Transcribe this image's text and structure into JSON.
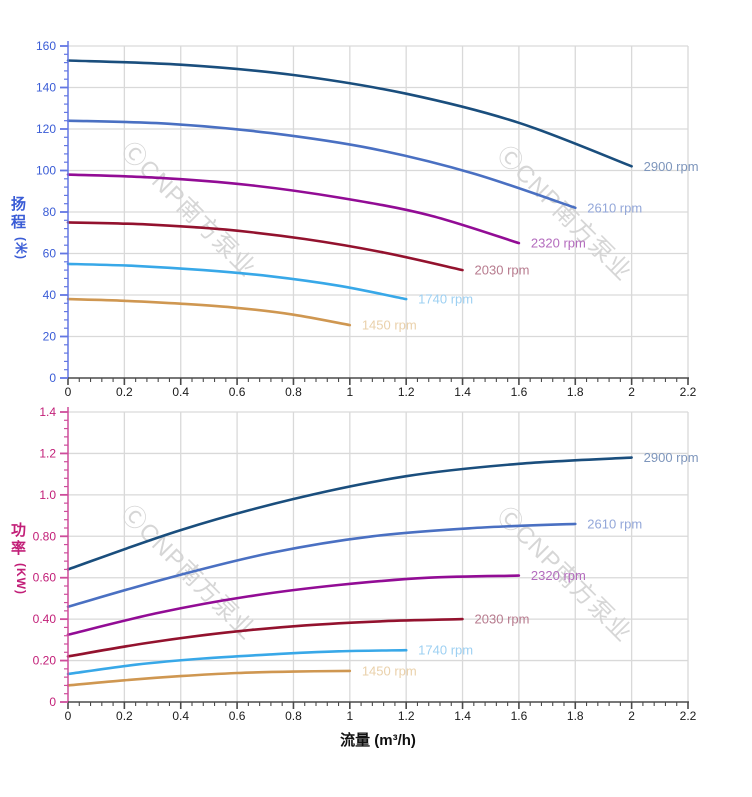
{
  "watermark": {
    "text": "ⒸCNP南方泵业",
    "color": "#D2D2D2"
  },
  "axis_titles": {
    "head_main": "扬程",
    "head_unit": "(米)",
    "power_main": "功率",
    "power_unit": "(KW)",
    "flow_title": "流量 (m³/h)"
  },
  "style": {
    "grid_color": "#D9D9D9",
    "x_axis_color": "#4A4A4A",
    "x_label_color": "#1B1B1B",
    "head_axis_color": "#3A5CD6",
    "head_tick_color": "#6377E3",
    "power_axis_color": "#C21F78",
    "power_tick_color": "#CE4D9B"
  },
  "chart_data": [
    {
      "type": "line",
      "id": "head",
      "title": "",
      "ylabel": "扬程 (米)",
      "xlabel": "",
      "xlim": [
        0,
        2.2
      ],
      "ylim": [
        0,
        160
      ],
      "x_major": 0.2,
      "x_minor": 0.04,
      "y_major": 20,
      "y_minor": 4,
      "x_tick_labels": [
        "0",
        "0.2",
        "0.4",
        "0.6",
        "0.8",
        "1",
        "1.2",
        "1.4",
        "1.6",
        "1.8",
        "2",
        "2.2"
      ],
      "y_tick_labels": [
        "0",
        "20",
        "40",
        "60",
        "80",
        "100",
        "120",
        "140",
        "160"
      ],
      "grid": true,
      "legend": "inline-end-labels",
      "series": [
        {
          "name": "2900 rpm",
          "color": "#1A4E7D",
          "label_color": "#7E96BC",
          "points": [
            [
              0,
              153
            ],
            [
              0.4,
              151
            ],
            [
              0.8,
              146
            ],
            [
              1.2,
              137
            ],
            [
              1.6,
              123
            ],
            [
              2,
              102
            ]
          ]
        },
        {
          "name": "2610 rpm",
          "color": "#4A70C2",
          "label_color": "#93A7D9",
          "points": [
            [
              0,
              124
            ],
            [
              0.36,
              122.5
            ],
            [
              0.72,
              118
            ],
            [
              1.08,
              110.5
            ],
            [
              1.44,
              98.5
            ],
            [
              1.8,
              82
            ]
          ]
        },
        {
          "name": "2320 rpm",
          "color": "#920C95",
          "label_color": "#B46CBE",
          "points": [
            [
              0,
              98
            ],
            [
              0.32,
              96.5
            ],
            [
              0.64,
              93
            ],
            [
              0.96,
              87
            ],
            [
              1.28,
              78.5
            ],
            [
              1.6,
              65
            ]
          ]
        },
        {
          "name": "2030 rpm",
          "color": "#93122E",
          "label_color": "#B77B8E",
          "points": [
            [
              0,
              75
            ],
            [
              0.28,
              74
            ],
            [
              0.56,
              71.5
            ],
            [
              0.84,
              67
            ],
            [
              1.12,
              60.5
            ],
            [
              1.4,
              52
            ]
          ]
        },
        {
          "name": "1740 rpm",
          "color": "#38A8E8",
          "label_color": "#9DD0F2",
          "points": [
            [
              0,
              55
            ],
            [
              0.24,
              54
            ],
            [
              0.48,
              52
            ],
            [
              0.72,
              49
            ],
            [
              0.96,
              44.5
            ],
            [
              1.2,
              38
            ]
          ]
        },
        {
          "name": "1450 rpm",
          "color": "#CF9751",
          "label_color": "#EAD1AB",
          "points": [
            [
              0,
              38
            ],
            [
              0.2,
              37.2
            ],
            [
              0.4,
              35.8
            ],
            [
              0.6,
              33.8
            ],
            [
              0.8,
              30.5
            ],
            [
              1,
              25.5
            ]
          ]
        }
      ]
    },
    {
      "type": "line",
      "id": "power",
      "title": "",
      "ylabel": "功率 (KW)",
      "xlabel": "流量 (m³/h)",
      "xlim": [
        0,
        2.2
      ],
      "ylim": [
        0,
        1.4
      ],
      "x_major": 0.2,
      "x_minor": 0.04,
      "y_major": 0.2,
      "y_minor": 0.04,
      "x_tick_labels": [
        "0",
        "0.2",
        "0.4",
        "0.6",
        "0.8",
        "1",
        "1.2",
        "1.4",
        "1.6",
        "1.8",
        "2",
        "2.2"
      ],
      "y_tick_labels": [
        "0",
        "0.20",
        "0.40",
        "0.60",
        "0.80",
        "1.0",
        "1.2",
        "1.4"
      ],
      "grid": true,
      "legend": "inline-end-labels",
      "series": [
        {
          "name": "2900 rpm",
          "color": "#1A4E7D",
          "label_color": "#7E96BC",
          "points": [
            [
              0,
              0.64
            ],
            [
              0.4,
              0.83
            ],
            [
              0.8,
              0.98
            ],
            [
              1.2,
              1.09
            ],
            [
              1.6,
              1.15
            ],
            [
              2,
              1.18
            ]
          ]
        },
        {
          "name": "2610 rpm",
          "color": "#4A70C2",
          "label_color": "#93A7D9",
          "points": [
            [
              0,
              0.46
            ],
            [
              0.36,
              0.6
            ],
            [
              0.72,
              0.72
            ],
            [
              1.08,
              0.8
            ],
            [
              1.44,
              0.84
            ],
            [
              1.8,
              0.86
            ]
          ]
        },
        {
          "name": "2320 rpm",
          "color": "#920C95",
          "label_color": "#B46CBE",
          "points": [
            [
              0,
              0.325
            ],
            [
              0.32,
              0.43
            ],
            [
              0.64,
              0.51
            ],
            [
              0.96,
              0.565
            ],
            [
              1.28,
              0.6
            ],
            [
              1.6,
              0.61
            ]
          ]
        },
        {
          "name": "2030 rpm",
          "color": "#93122E",
          "label_color": "#B77B8E",
          "points": [
            [
              0,
              0.22
            ],
            [
              0.28,
              0.285
            ],
            [
              0.56,
              0.335
            ],
            [
              0.84,
              0.37
            ],
            [
              1.12,
              0.39
            ],
            [
              1.4,
              0.4
            ]
          ]
        },
        {
          "name": "1740 rpm",
          "color": "#38A8E8",
          "label_color": "#9DD0F2",
          "points": [
            [
              0,
              0.135
            ],
            [
              0.24,
              0.18
            ],
            [
              0.48,
              0.21
            ],
            [
              0.72,
              0.23
            ],
            [
              0.96,
              0.245
            ],
            [
              1.2,
              0.25
            ]
          ]
        },
        {
          "name": "1450 rpm",
          "color": "#CF9751",
          "label_color": "#EAD1AB",
          "points": [
            [
              0,
              0.08
            ],
            [
              0.2,
              0.105
            ],
            [
              0.4,
              0.125
            ],
            [
              0.6,
              0.14
            ],
            [
              0.8,
              0.147
            ],
            [
              1,
              0.15
            ]
          ]
        }
      ]
    }
  ]
}
